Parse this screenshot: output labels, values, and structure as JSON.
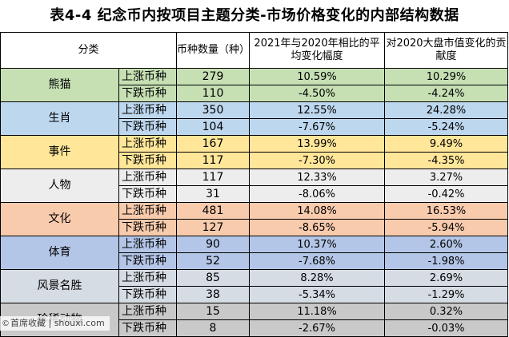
{
  "title": "表4-4  纪念币内按项目主题分类-市场价格变化的内部结构数据",
  "header": {
    "category": "分类",
    "count": "币种数量（种）",
    "avg_change": "2021年与2020年相比的平均变化幅度",
    "contribution": "对2020大盘市值变化的贡献度"
  },
  "colors": {
    "熊猫": "#c6e0b4",
    "生肖": "#bdd7ee",
    "事件": "#ffe699",
    "人物": "#ededed",
    "文化": "#f8cbad",
    "体育": "#b4c6e7",
    "风景名胜": "#d6dce4",
    "珍稀动物": "#c9c9c9"
  },
  "groups": [
    {
      "name": "熊猫",
      "rows": [
        {
          "dir": "上涨币种",
          "count": "279",
          "avg": "10.59%",
          "contrib": "10.29%"
        },
        {
          "dir": "下跌币种",
          "count": "110",
          "avg": "-4.50%",
          "contrib": "-4.24%"
        }
      ]
    },
    {
      "name": "生肖",
      "rows": [
        {
          "dir": "上涨币种",
          "count": "350",
          "avg": "12.55%",
          "contrib": "24.28%"
        },
        {
          "dir": "下跌币种",
          "count": "104",
          "avg": "-7.67%",
          "contrib": "-5.24%"
        }
      ]
    },
    {
      "name": "事件",
      "rows": [
        {
          "dir": "上涨币种",
          "count": "167",
          "avg": "13.99%",
          "contrib": "9.49%"
        },
        {
          "dir": "下跌币种",
          "count": "117",
          "avg": "-7.30%",
          "contrib": "-4.35%"
        }
      ]
    },
    {
      "name": "人物",
      "rows": [
        {
          "dir": "上涨币种",
          "count": "117",
          "avg": "12.33%",
          "contrib": "3.27%"
        },
        {
          "dir": "下跌币种",
          "count": "31",
          "avg": "-8.06%",
          "contrib": "-0.42%"
        }
      ]
    },
    {
      "name": "文化",
      "rows": [
        {
          "dir": "上涨币种",
          "count": "481",
          "avg": "14.08%",
          "contrib": "16.53%"
        },
        {
          "dir": "下跌币种",
          "count": "127",
          "avg": "-8.65%",
          "contrib": "-5.94%"
        }
      ]
    },
    {
      "name": "体育",
      "rows": [
        {
          "dir": "上涨币种",
          "count": "90",
          "avg": "10.37%",
          "contrib": "2.60%"
        },
        {
          "dir": "下跌币种",
          "count": "52",
          "avg": "-7.68%",
          "contrib": "-1.98%"
        }
      ]
    },
    {
      "name": "风景名胜",
      "rows": [
        {
          "dir": "上涨币种",
          "count": "85",
          "avg": "8.28%",
          "contrib": "2.69%"
        },
        {
          "dir": "下跌币种",
          "count": "38",
          "avg": "-5.34%",
          "contrib": "-1.29%"
        }
      ]
    },
    {
      "name": "珍稀动物",
      "rows": [
        {
          "dir": "上涨币种",
          "count": "15",
          "avg": "11.18%",
          "contrib": "0.32%"
        },
        {
          "dir": "下跌币种",
          "count": "8",
          "avg": "-2.67%",
          "contrib": "-0.03%"
        }
      ]
    }
  ],
  "watermark": {
    "icon": "©",
    "text": "首席收藏 | shouxi.com"
  }
}
